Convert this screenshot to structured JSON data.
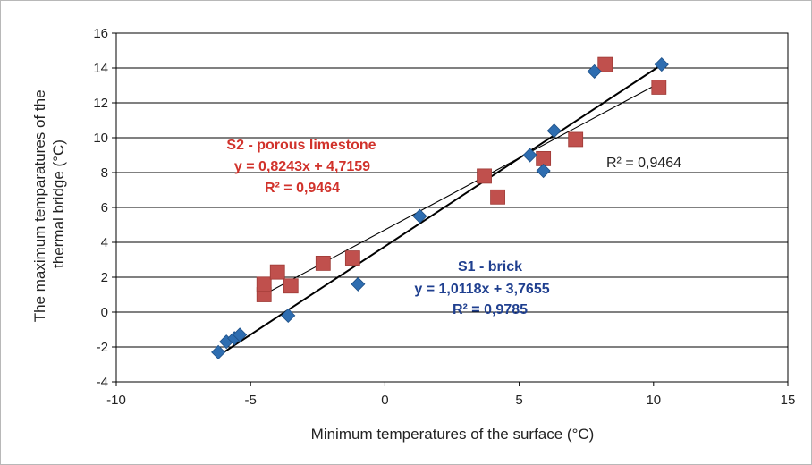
{
  "chart_data": {
    "type": "scatter",
    "title": "",
    "xlabel": "Minimum temperatures of the surface (°C)",
    "ylabel_lines": [
      "The maximum temparatures of the",
      "thermal bridge (°C)"
    ],
    "xlim": [
      -10,
      15
    ],
    "ylim": [
      -4,
      16
    ],
    "x_ticks": [
      -10,
      -5,
      0,
      5,
      10,
      15
    ],
    "y_ticks": [
      -4,
      -2,
      0,
      2,
      4,
      6,
      8,
      10,
      12,
      14,
      16
    ],
    "x_tick_labels": [
      "-10",
      "-5",
      "0",
      "5",
      "10",
      "15"
    ],
    "y_tick_labels": [
      "-4",
      "-2",
      "0",
      "2",
      "4",
      "6",
      "8",
      "10",
      "12",
      "14",
      "16"
    ],
    "grid": "horizontal",
    "series": [
      {
        "key": "s1",
        "marker": "diamond",
        "color": "#2e6db0",
        "points": [
          {
            "x": -6.2,
            "y": -2.3
          },
          {
            "x": -5.9,
            "y": -1.7
          },
          {
            "x": -5.6,
            "y": -1.5
          },
          {
            "x": -5.4,
            "y": -1.3
          },
          {
            "x": -3.6,
            "y": -0.2
          },
          {
            "x": -1.0,
            "y": 1.6
          },
          {
            "x": 1.3,
            "y": 5.5
          },
          {
            "x": 5.4,
            "y": 9.0
          },
          {
            "x": 5.9,
            "y": 8.1
          },
          {
            "x": 6.3,
            "y": 10.4
          },
          {
            "x": 7.8,
            "y": 13.8
          },
          {
            "x": 10.3,
            "y": 14.2
          }
        ],
        "trendline": {
          "slope": 1.0118,
          "intercept": 3.7655,
          "x_range": [
            -6.2,
            10.3
          ]
        }
      },
      {
        "key": "s2",
        "marker": "square",
        "color": "#c0504d",
        "points": [
          {
            "x": -4.5,
            "y": 1.0
          },
          {
            "x": -4.5,
            "y": 1.6
          },
          {
            "x": -4.0,
            "y": 2.3
          },
          {
            "x": -3.5,
            "y": 1.5
          },
          {
            "x": -2.3,
            "y": 2.8
          },
          {
            "x": -1.2,
            "y": 3.1
          },
          {
            "x": 3.7,
            "y": 7.8
          },
          {
            "x": 4.2,
            "y": 6.6
          },
          {
            "x": 5.9,
            "y": 8.8
          },
          {
            "x": 7.1,
            "y": 9.9
          },
          {
            "x": 8.2,
            "y": 14.2
          },
          {
            "x": 10.2,
            "y": 12.9
          }
        ],
        "trendline": {
          "slope": 0.8243,
          "intercept": 4.7159,
          "x_range": [
            -4.5,
            10.2
          ]
        }
      }
    ],
    "annotations": {
      "s2": {
        "name": "S2 - porous limestone",
        "equation": "y = 0,8243x + 4,7159",
        "r2": "R² = 0,9464",
        "color": "#d1322b"
      },
      "s1": {
        "name": "S1 - brick",
        "equation": "y = 1,0118x + 3,7655",
        "r2": "R² = 0,9785",
        "color": "#1f3f8f"
      },
      "extra_r2": "R² = 0,9464"
    }
  }
}
